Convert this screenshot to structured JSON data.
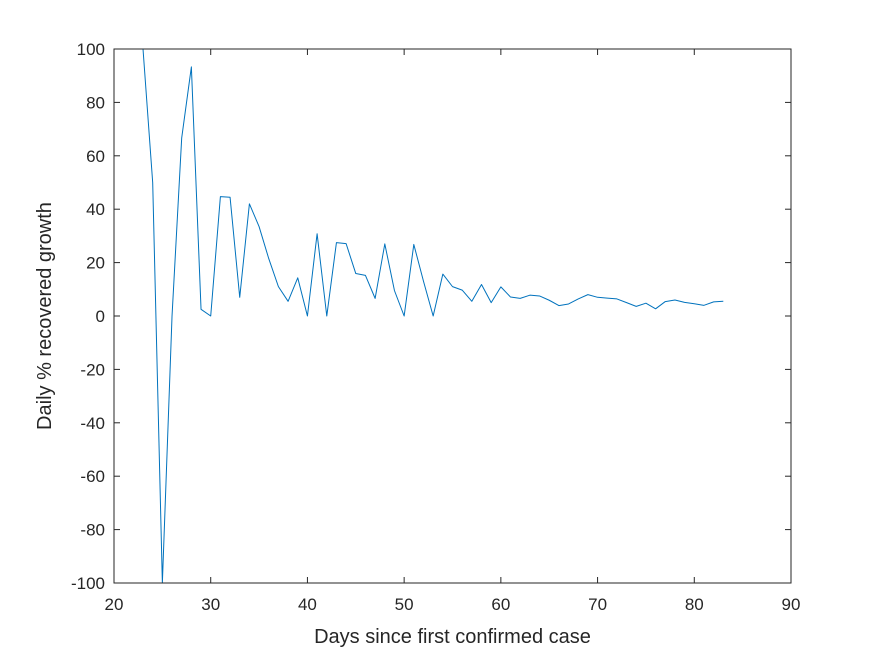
{
  "chart_data": {
    "type": "line",
    "title": "",
    "xlabel": "Days since first confirmed case",
    "ylabel": "Daily % recovered growth",
    "xlim": [
      20,
      90
    ],
    "ylim": [
      -100,
      100
    ],
    "xticks": [
      20,
      30,
      40,
      50,
      60,
      70,
      80,
      90
    ],
    "yticks": [
      -100,
      -80,
      -60,
      -40,
      -20,
      0,
      20,
      40,
      60,
      80,
      100
    ],
    "grid": false,
    "series": [
      {
        "name": "Daily % recovered growth",
        "color": "#0072BD",
        "x": [
          23,
          24,
          25,
          26,
          27,
          28,
          29,
          30,
          31,
          32,
          33,
          34,
          35,
          36,
          37,
          38,
          39,
          40,
          41,
          42,
          43,
          44,
          45,
          46,
          47,
          48,
          49,
          50,
          51,
          52,
          53,
          54,
          55,
          56,
          57,
          58,
          59,
          60,
          61,
          62,
          63,
          64,
          65,
          66,
          67,
          68,
          69,
          70,
          71,
          72,
          73,
          74,
          75,
          76,
          77,
          78,
          79,
          80,
          81,
          82,
          83
        ],
        "y": [
          100,
          50,
          -100,
          0,
          66.7,
          93.3,
          2.5,
          0,
          44.7,
          44.5,
          7,
          42,
          33.5,
          21.5,
          11,
          5.5,
          14.3,
          0,
          30.8,
          0,
          27.5,
          27.1,
          15.9,
          15.2,
          6.6,
          27,
          9.5,
          0,
          26.8,
          13,
          0,
          15.7,
          11,
          9.7,
          5.5,
          11.8,
          5,
          10.9,
          7.1,
          6.6,
          7.8,
          7.5,
          5.9,
          3.9,
          4.5,
          6.4,
          8,
          7,
          6.7,
          6.4,
          5,
          3.6,
          4.8,
          2.7,
          5.4,
          6,
          5.1,
          4.6,
          4,
          5.3,
          5.5
        ]
      }
    ]
  }
}
